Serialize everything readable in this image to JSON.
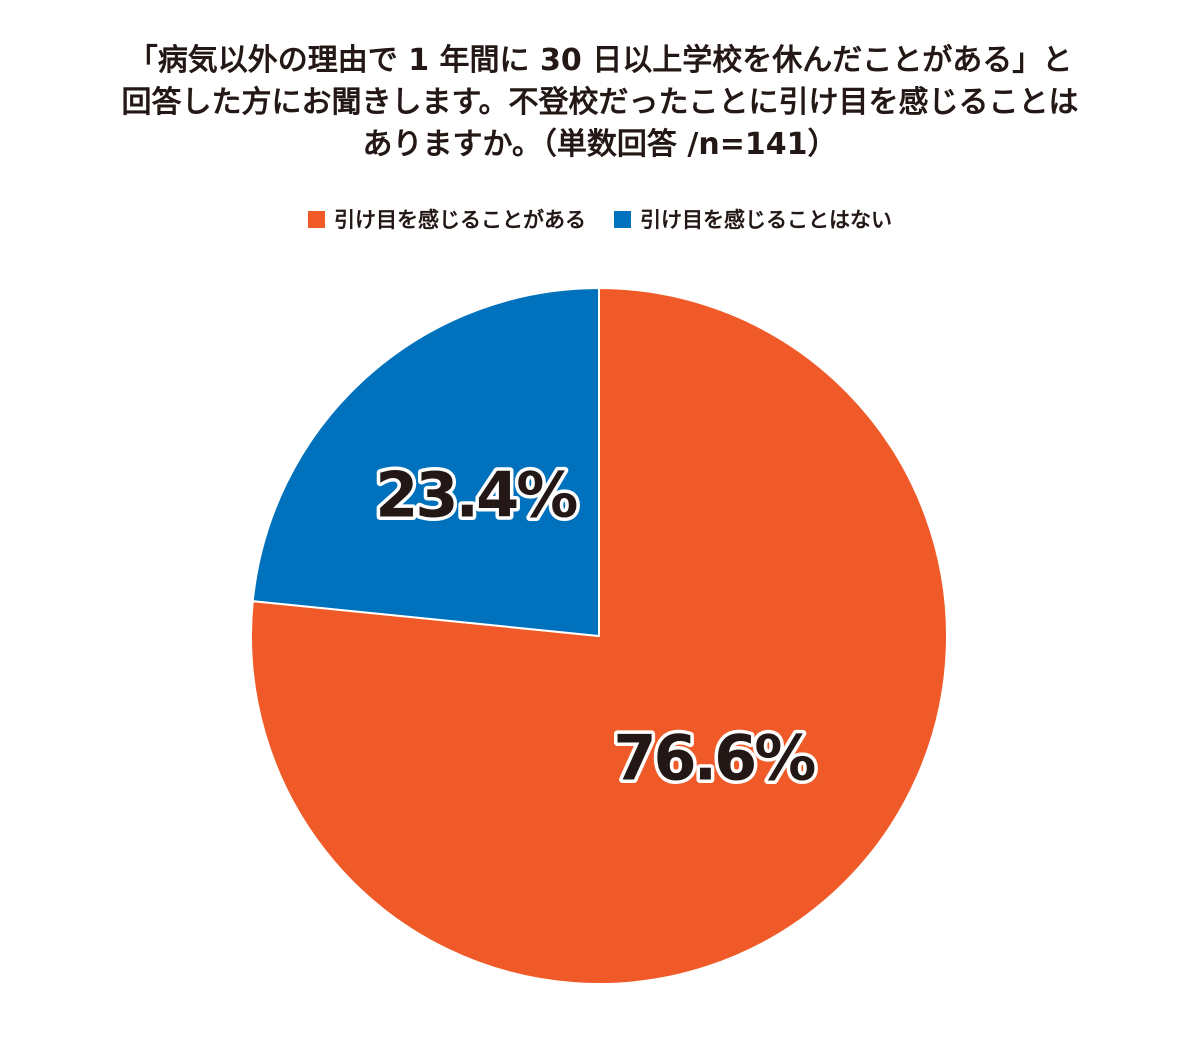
{
  "chart_data": {
    "type": "pie",
    "title_lines": [
      "「病気以外の理由で 1 年間に 30 日以上学校を休んだことがある」と",
      "回答した方にお聞きします。不登校だったことに引け目を感じることは",
      "ありますか。（単数回答 /n=141）"
    ],
    "slices": [
      {
        "label": "引け目を感じることがある",
        "value": 76.6,
        "display": "76.6%",
        "color": "#f05a28"
      },
      {
        "label": "引け目を感じることはない",
        "value": 23.4,
        "display": "23.4%",
        "color": "#0071bc"
      }
    ],
    "start": "12 o'clock, clockwise",
    "legend_position": "top"
  }
}
